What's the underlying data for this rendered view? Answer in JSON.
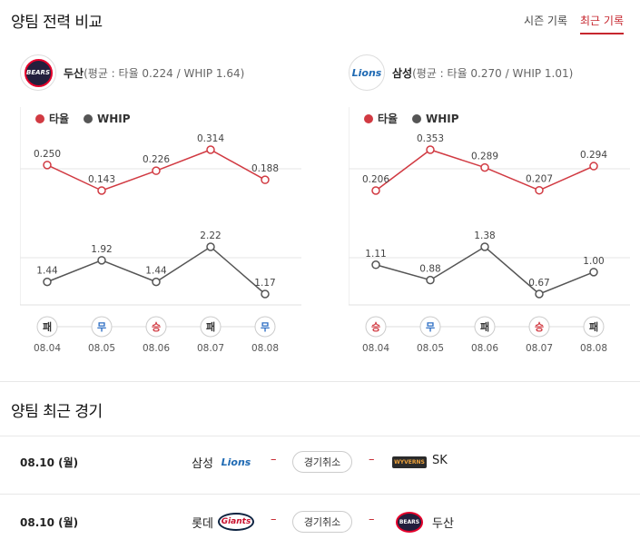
{
  "section1": {
    "title": "양팀 전력 비교",
    "tabs": [
      "시즌 기록",
      "최근 기록"
    ],
    "active_tab": 1
  },
  "teams": [
    {
      "name": "두산",
      "stat": "(평균 : 타율 0.224 / WHIP 1.64)",
      "logo_text": "BEARS"
    },
    {
      "name": "삼성",
      "stat": "(평균 : 타율 0.270 / WHIP 1.01)",
      "logo_text": "Lions"
    }
  ],
  "legend": {
    "avg": "타율",
    "whip": "WHIP"
  },
  "colors": {
    "avg": "#d13a42",
    "whip": "#555555",
    "win": "#d13a42",
    "draw": "#2f6fc4",
    "loss": "#333333",
    "accent": "#c6262e"
  },
  "chart_data": [
    {
      "type": "line",
      "team": "두산",
      "x": [
        "08.04",
        "08.05",
        "08.06",
        "08.07",
        "08.08"
      ],
      "series": [
        {
          "name": "타율",
          "values": [
            0.25,
            0.143,
            0.226,
            0.314,
            0.188
          ],
          "labels": [
            "0.250",
            "0.143",
            "0.226",
            "0.314",
            "0.188"
          ]
        },
        {
          "name": "WHIP",
          "values": [
            1.44,
            1.92,
            1.44,
            2.22,
            1.17
          ],
          "labels": [
            "1.44",
            "1.92",
            "1.44",
            "2.22",
            "1.17"
          ]
        }
      ],
      "results": [
        "패",
        "무",
        "승",
        "패",
        "무"
      ]
    },
    {
      "type": "line",
      "team": "삼성",
      "x": [
        "08.04",
        "08.05",
        "08.06",
        "08.07",
        "08.08"
      ],
      "series": [
        {
          "name": "타율",
          "values": [
            0.206,
            0.353,
            0.289,
            0.207,
            0.294
          ],
          "labels": [
            "0.206",
            "0.353",
            "0.289",
            "0.207",
            "0.294"
          ]
        },
        {
          "name": "WHIP",
          "values": [
            1.11,
            0.88,
            1.38,
            0.67,
            1.0
          ],
          "labels": [
            "1.11",
            "0.88",
            "1.38",
            "0.67",
            "1.00"
          ]
        }
      ],
      "results": [
        "승",
        "무",
        "패",
        "승",
        "패"
      ]
    }
  ],
  "section2": {
    "title": "양팀 최근 경기",
    "games": [
      {
        "date": "08.10 (월)",
        "home": "삼성",
        "home_logo": "Lions",
        "status": "경기취소",
        "away": "SK",
        "away_logo": "WYVERNS"
      },
      {
        "date": "08.10 (월)",
        "home": "롯데",
        "home_logo": "Giants",
        "status": "경기취소",
        "away": "두산",
        "away_logo": "BEARS"
      }
    ]
  }
}
